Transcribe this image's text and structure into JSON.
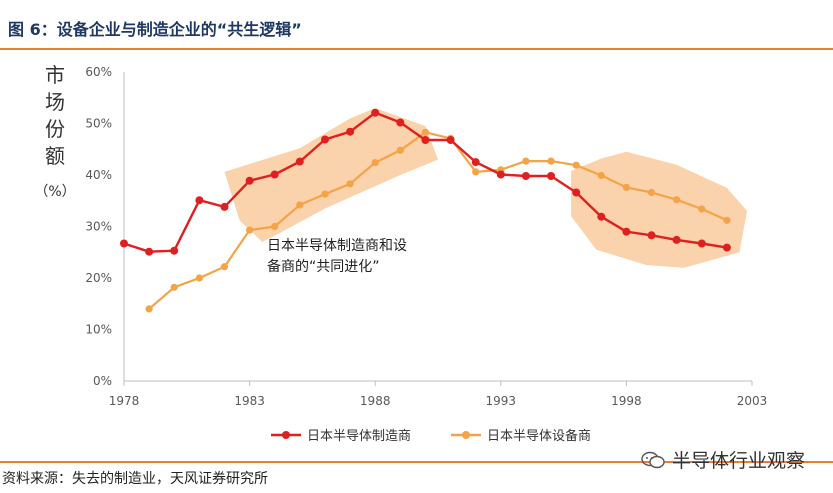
{
  "header": {
    "title": "图 6：设备企业与制造企业的“共生逻辑”"
  },
  "footer": {
    "source": "资料来源：失去的制造业，天风证券研究所"
  },
  "watermark": {
    "text": "半导体行业观察",
    "icon": "wechat-icon"
  },
  "colors": {
    "maker": "#e02020",
    "equipment": "#f5a347",
    "band": "#f8c08a",
    "accent": "#ed7d31"
  },
  "chart_data": {
    "type": "line",
    "ylabel_chars": [
      "市",
      "场",
      "份",
      "额"
    ],
    "ylabel_unit": "（%）",
    "ylim": [
      0,
      60
    ],
    "xlim": [
      1978,
      2003
    ],
    "y_ticks": [
      0,
      10,
      20,
      30,
      40,
      50,
      60
    ],
    "y_tick_labels": [
      "0%",
      "10%",
      "20%",
      "30%",
      "40%",
      "50%",
      "60%"
    ],
    "x_ticks": [
      1978,
      1983,
      1988,
      1993,
      1998,
      2003
    ],
    "x_tick_labels": [
      "1978",
      "1983",
      "1988",
      "1993",
      "1998",
      "2003"
    ],
    "annotation": {
      "lines": [
        "日本半导体制造商和设",
        "备商的“共同进化”"
      ]
    },
    "series": [
      {
        "name": "日本半导体制造商",
        "color": "#e02020",
        "x": [
          1978,
          1979,
          1980,
          1981,
          1982,
          1983,
          1984,
          1985,
          1986,
          1987,
          1988,
          1989,
          1990,
          1991,
          1992,
          1993,
          1994,
          1995,
          1996,
          1997,
          1998,
          1999,
          2000,
          2001,
          2002
        ],
        "values": [
          26.7,
          25.1,
          25.3,
          35.1,
          33.8,
          38.9,
          40.1,
          42.6,
          46.9,
          48.4,
          52.1,
          50.2,
          46.8,
          46.8,
          42.5,
          40.1,
          39.8,
          39.8,
          36.6,
          31.9,
          29.0,
          28.3,
          27.4,
          26.7,
          25.9
        ]
      },
      {
        "name": "日本半导体设备商",
        "color": "#f5a347",
        "x": [
          1979,
          1980,
          1981,
          1982,
          1983,
          1984,
          1985,
          1986,
          1987,
          1988,
          1989,
          1990,
          1991,
          1992,
          1993,
          1994,
          1995,
          1996,
          1997,
          1998,
          1999,
          2000,
          2001,
          2002
        ],
        "values": [
          14.0,
          18.2,
          20.0,
          22.2,
          29.3,
          30.0,
          34.2,
          36.3,
          38.3,
          42.4,
          44.8,
          48.3,
          47.1,
          40.6,
          41.0,
          42.7,
          42.7,
          41.9,
          39.9,
          37.6,
          36.6,
          35.2,
          33.4,
          31.2
        ]
      }
    ]
  }
}
